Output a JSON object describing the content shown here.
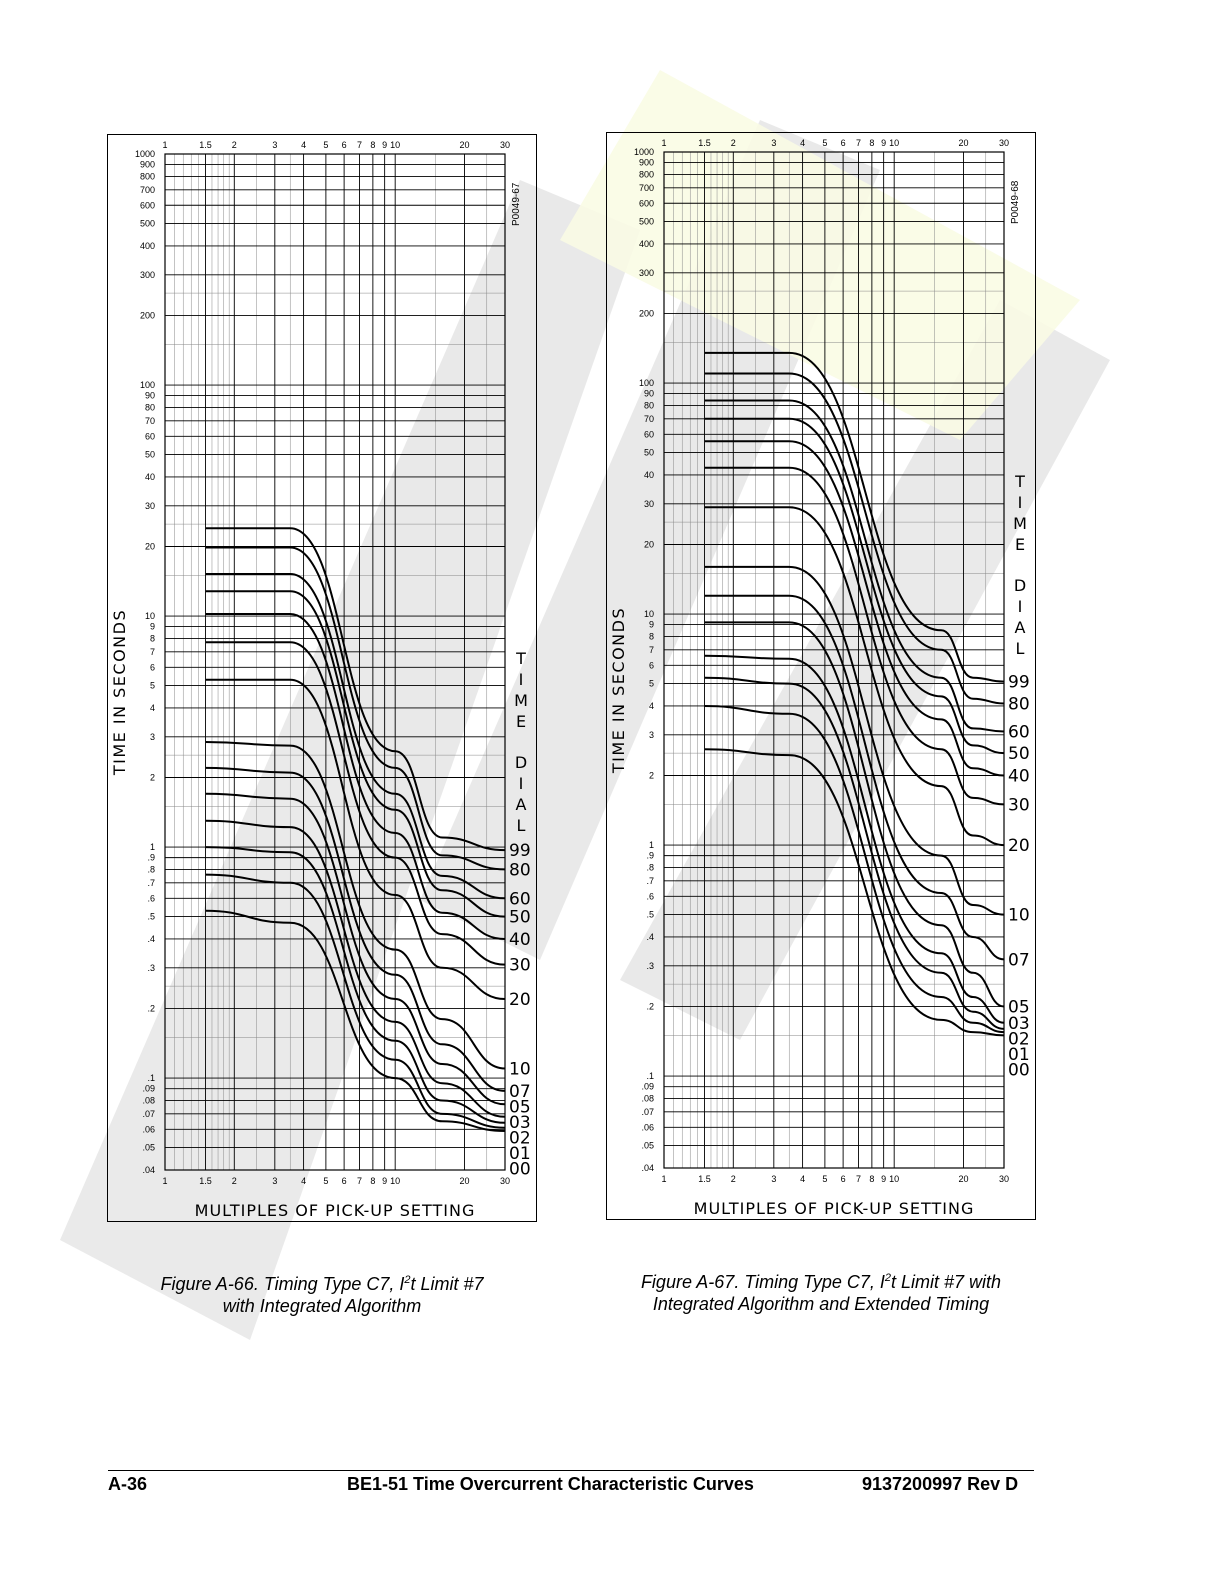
{
  "charts": [
    {
      "figure_id": "P0049-67",
      "caption_line1_prefix": "Figure A-66. Timing Type C7, I",
      "caption_sup": "2",
      "caption_line1_suffix": "t Limit #7",
      "caption_line2": "with Integrated Algorithm"
    },
    {
      "figure_id": "P0049-68",
      "caption_line1_prefix": "Figure A-67. Timing Type C7, I",
      "caption_sup": "2",
      "caption_line1_suffix": "t Limit #7 with",
      "caption_line2": "Integrated Algorithm and Extended Timing"
    }
  ],
  "footer": {
    "page": "A-36",
    "title": "BE1-51 Time Overcurrent Characteristic Curves",
    "doc": "9137200997 Rev D"
  },
  "watermark_color": "#d0d0d0",
  "highlight_color": "#f3f6c4",
  "chart_data": [
    {
      "type": "line",
      "title": "Figure A-66. Timing Type C7, I2t Limit #7 with Integrated Algorithm",
      "xlabel": "MULTIPLES OF PICK-UP SETTING",
      "ylabel": "TIME IN SECONDS",
      "legend_title": "TIME DIAL",
      "x_scale": "log",
      "y_scale": "log",
      "xlim": [
        1,
        30
      ],
      "ylim": [
        0.04,
        1000
      ],
      "x_ticks": [
        "1",
        "1.5",
        "2",
        "3",
        "4",
        "5",
        "6",
        "7",
        "8",
        "9",
        "10",
        "20",
        "30"
      ],
      "y_ticks": [
        "1000",
        "900",
        "800",
        "700",
        "600",
        "500",
        "400",
        "300",
        "200",
        "100",
        "90",
        "80",
        "70",
        "60",
        "50",
        "40",
        "30",
        "20",
        "10",
        "9",
        "8",
        "7",
        "6",
        "5",
        "4",
        "3",
        "2",
        "1",
        ".9",
        ".8",
        ".7",
        ".6",
        ".5",
        ".4",
        ".3",
        ".2",
        ".1",
        ".09",
        ".08",
        ".07",
        ".06",
        ".05",
        ".04"
      ],
      "grid": true,
      "series": [
        {
          "name": "99",
          "x": [
            1.5,
            3.5,
            10,
            16,
            30
          ],
          "y": [
            24.0,
            24.0,
            2.6,
            1.1,
            0.97
          ]
        },
        {
          "name": "80",
          "x": [
            1.5,
            3.5,
            10,
            16,
            30
          ],
          "y": [
            19.8,
            19.8,
            2.2,
            0.92,
            0.8
          ]
        },
        {
          "name": "60",
          "x": [
            1.5,
            3.5,
            10,
            16,
            30
          ],
          "y": [
            15.2,
            15.2,
            1.7,
            0.75,
            0.6
          ]
        },
        {
          "name": "50",
          "x": [
            1.5,
            3.5,
            10,
            16,
            30
          ],
          "y": [
            12.8,
            12.8,
            1.45,
            0.65,
            0.5
          ]
        },
        {
          "name": "40",
          "x": [
            1.5,
            3.5,
            10,
            16,
            30
          ],
          "y": [
            10.2,
            10.2,
            1.15,
            0.52,
            0.4
          ]
        },
        {
          "name": "30",
          "x": [
            1.5,
            3.5,
            10,
            16,
            30
          ],
          "y": [
            7.7,
            7.7,
            0.9,
            0.42,
            0.31
          ]
        },
        {
          "name": "20",
          "x": [
            1.5,
            3.5,
            10,
            16,
            30
          ],
          "y": [
            5.3,
            5.3,
            0.62,
            0.3,
            0.22
          ]
        },
        {
          "name": "10",
          "x": [
            1.5,
            3.5,
            10,
            16,
            30
          ],
          "y": [
            2.85,
            2.75,
            0.36,
            0.18,
            0.11
          ]
        },
        {
          "name": "07",
          "x": [
            1.5,
            3.5,
            10,
            16,
            30
          ],
          "y": [
            2.2,
            2.1,
            0.28,
            0.14,
            0.088
          ]
        },
        {
          "name": "05",
          "x": [
            1.5,
            3.5,
            10,
            16,
            30
          ],
          "y": [
            1.7,
            1.62,
            0.22,
            0.115,
            0.077
          ]
        },
        {
          "name": "03",
          "x": [
            1.5,
            3.5,
            10,
            16,
            30
          ],
          "y": [
            1.3,
            1.22,
            0.175,
            0.095,
            0.068
          ]
        },
        {
          "name": "02",
          "x": [
            1.5,
            3.5,
            10,
            16,
            30
          ],
          "y": [
            1.0,
            0.95,
            0.145,
            0.08,
            0.064
          ]
        },
        {
          "name": "01",
          "x": [
            1.5,
            3.5,
            10,
            16,
            30
          ],
          "y": [
            0.76,
            0.7,
            0.12,
            0.07,
            0.061
          ]
        },
        {
          "name": "00",
          "x": [
            1.5,
            3.5,
            10,
            16,
            30
          ],
          "y": [
            0.53,
            0.47,
            0.1,
            0.065,
            0.059
          ]
        }
      ]
    },
    {
      "type": "line",
      "title": "Figure A-67. Timing Type C7, I2t Limit #7 with Integrated Algorithm and Extended Timing",
      "xlabel": "MULTIPLES OF PICK-UP SETTING",
      "ylabel": "TIME IN SECONDS",
      "legend_title": "TIME DIAL",
      "x_scale": "log",
      "y_scale": "log",
      "xlim": [
        1,
        30
      ],
      "ylim": [
        0.04,
        1000
      ],
      "x_ticks": [
        "1",
        "1.5",
        "2",
        "3",
        "4",
        "5",
        "6",
        "7",
        "8",
        "9",
        "10",
        "20",
        "30"
      ],
      "y_ticks": [
        "1000",
        "900",
        "800",
        "700",
        "600",
        "500",
        "400",
        "300",
        "200",
        "100",
        "90",
        "80",
        "70",
        "60",
        "50",
        "40",
        "30",
        "20",
        "10",
        "9",
        "8",
        "7",
        "6",
        "5",
        "4",
        "3",
        "2",
        "1",
        ".9",
        ".8",
        ".7",
        ".6",
        ".5",
        ".4",
        ".3",
        ".2",
        ".1",
        ".09",
        ".08",
        ".07",
        ".06",
        ".05",
        ".04"
      ],
      "grid": true,
      "series": [
        {
          "name": "99",
          "x": [
            1.5,
            3.5,
            16,
            22,
            30
          ],
          "y": [
            135,
            135,
            8.5,
            5.3,
            5.1
          ]
        },
        {
          "name": "80",
          "x": [
            1.5,
            3.5,
            16,
            22,
            30
          ],
          "y": [
            110,
            110,
            7.0,
            4.3,
            4.1
          ]
        },
        {
          "name": "60",
          "x": [
            1.5,
            3.5,
            16,
            22,
            30
          ],
          "y": [
            84,
            84,
            5.3,
            3.2,
            3.1
          ]
        },
        {
          "name": "50",
          "x": [
            1.5,
            3.5,
            16,
            22,
            30
          ],
          "y": [
            70,
            70,
            4.4,
            2.7,
            2.5
          ]
        },
        {
          "name": "40",
          "x": [
            1.5,
            3.5,
            16,
            22,
            30
          ],
          "y": [
            56,
            56,
            3.5,
            2.15,
            2.0
          ]
        },
        {
          "name": "30",
          "x": [
            1.5,
            3.5,
            16,
            22,
            30
          ],
          "y": [
            43,
            43,
            2.6,
            1.6,
            1.5
          ]
        },
        {
          "name": "20",
          "x": [
            1.5,
            3.5,
            16,
            22,
            30
          ],
          "y": [
            29,
            29,
            1.8,
            1.1,
            1.0
          ]
        },
        {
          "name": "10",
          "x": [
            1.5,
            3.5,
            16,
            22,
            30
          ],
          "y": [
            16,
            16,
            0.9,
            0.55,
            0.5
          ]
        },
        {
          "name": "07",
          "x": [
            1.5,
            3.5,
            16,
            22,
            30
          ],
          "y": [
            12,
            12,
            0.62,
            0.4,
            0.32
          ]
        },
        {
          "name": "05",
          "x": [
            1.5,
            3.5,
            16,
            22,
            30
          ],
          "y": [
            9.2,
            9.2,
            0.45,
            0.28,
            0.2
          ]
        },
        {
          "name": "03",
          "x": [
            1.5,
            3.5,
            16,
            22,
            30
          ],
          "y": [
            6.6,
            6.4,
            0.34,
            0.22,
            0.17
          ]
        },
        {
          "name": "02",
          "x": [
            1.5,
            3.5,
            16,
            22,
            30
          ],
          "y": [
            5.3,
            5.0,
            0.28,
            0.19,
            0.16
          ]
        },
        {
          "name": "01",
          "x": [
            1.5,
            3.5,
            16,
            22,
            30
          ],
          "y": [
            4.0,
            3.7,
            0.22,
            0.17,
            0.155
          ]
        },
        {
          "name": "00",
          "x": [
            1.5,
            3.5,
            16,
            22,
            30
          ],
          "y": [
            2.6,
            2.45,
            0.175,
            0.155,
            0.15
          ]
        }
      ]
    }
  ]
}
